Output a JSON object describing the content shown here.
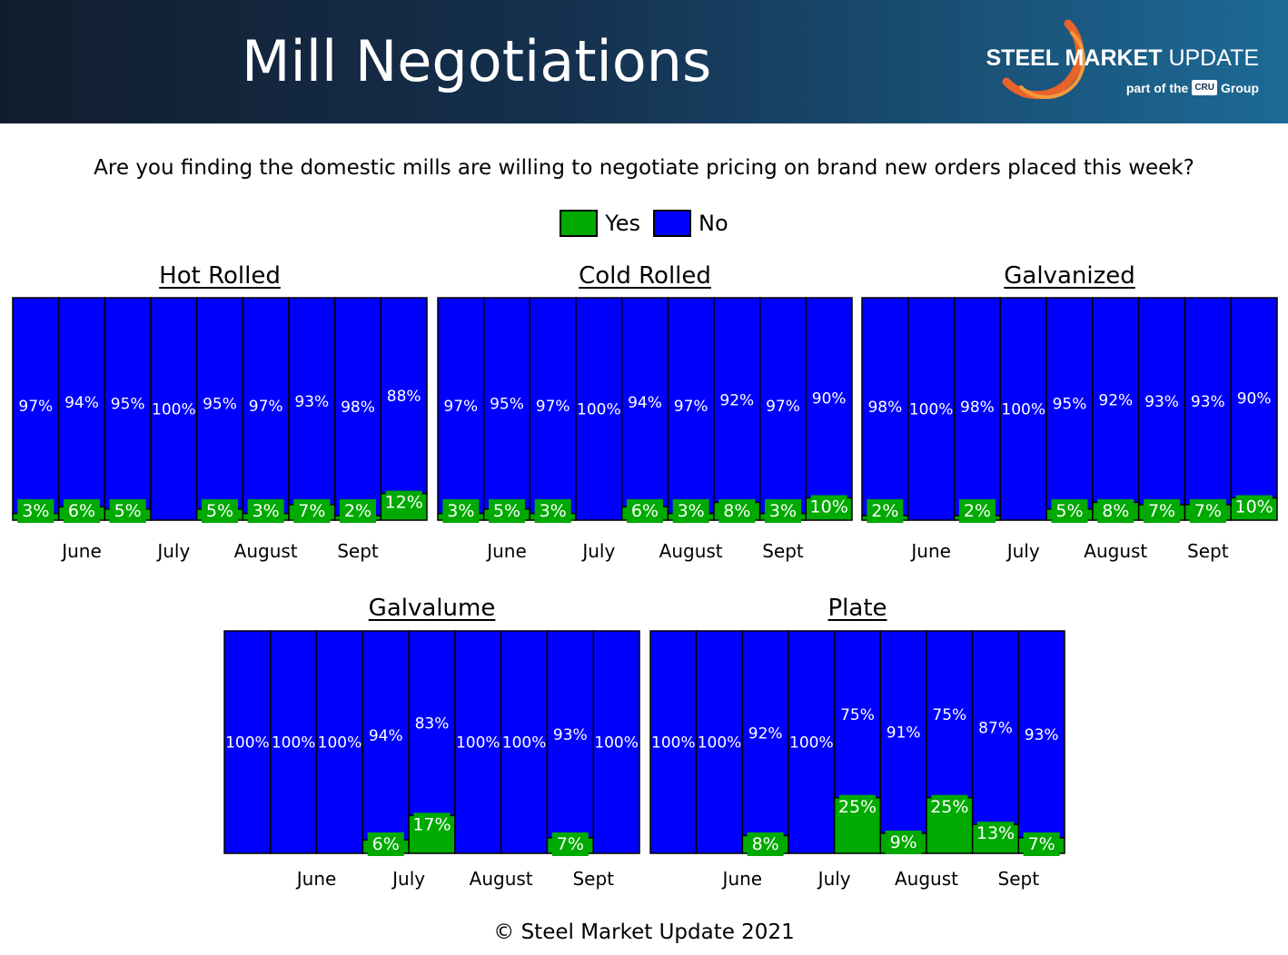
{
  "header": {
    "title": "Mill Negotiations",
    "logo_name_bold": "STEEL MARKET",
    "logo_name_rest": " UPDATE",
    "logo_part_of": "part of the",
    "logo_badge": "CRU",
    "logo_group": "Group"
  },
  "question": "Are you finding the domestic mills are willing to negotiate pricing on brand new orders placed this week?",
  "legend": {
    "yes_label": "Yes",
    "no_label": "No"
  },
  "colors": {
    "yes": "#00aa00",
    "no": "#0000ff",
    "outline": "#000000",
    "label": "#ffffff"
  },
  "footer": "© Steel Market Update 2021",
  "chart_data": [
    {
      "type": "bar",
      "stacked": true,
      "title": "Hot Rolled",
      "series": [
        {
          "name": "Yes",
          "values": [
            3,
            6,
            5,
            0,
            5,
            3,
            7,
            2,
            12
          ]
        },
        {
          "name": "No",
          "values": [
            97,
            94,
            95,
            100,
            95,
            97,
            93,
            98,
            88
          ]
        }
      ],
      "month_labels": [
        {
          "label": "June",
          "at": 1
        },
        {
          "label": "July",
          "at": 3
        },
        {
          "label": "August",
          "at": 5
        },
        {
          "label": "Sept",
          "at": 7
        }
      ],
      "ylim": [
        0,
        100
      ]
    },
    {
      "type": "bar",
      "stacked": true,
      "title": "Cold Rolled",
      "series": [
        {
          "name": "Yes",
          "values": [
            3,
            5,
            3,
            0,
            6,
            3,
            8,
            3,
            10
          ]
        },
        {
          "name": "No",
          "values": [
            97,
            95,
            97,
            100,
            94,
            97,
            92,
            97,
            90
          ]
        }
      ],
      "month_labels": [
        {
          "label": "June",
          "at": 1
        },
        {
          "label": "July",
          "at": 3
        },
        {
          "label": "August",
          "at": 5
        },
        {
          "label": "Sept",
          "at": 7
        }
      ],
      "ylim": [
        0,
        100
      ]
    },
    {
      "type": "bar",
      "stacked": true,
      "title": "Galvanized",
      "series": [
        {
          "name": "Yes",
          "values": [
            2,
            0,
            2,
            0,
            5,
            8,
            7,
            7,
            10
          ]
        },
        {
          "name": "No",
          "values": [
            98,
            100,
            98,
            100,
            95,
            92,
            93,
            93,
            90
          ]
        }
      ],
      "month_labels": [
        {
          "label": "June",
          "at": 1
        },
        {
          "label": "July",
          "at": 3
        },
        {
          "label": "August",
          "at": 5
        },
        {
          "label": "Sept",
          "at": 7
        }
      ],
      "ylim": [
        0,
        100
      ]
    },
    {
      "type": "bar",
      "stacked": true,
      "title": "Galvalume",
      "series": [
        {
          "name": "Yes",
          "values": [
            0,
            0,
            0,
            6,
            17,
            0,
            0,
            7,
            0
          ]
        },
        {
          "name": "No",
          "values": [
            100,
            100,
            100,
            94,
            83,
            100,
            100,
            93,
            100
          ]
        }
      ],
      "month_labels": [
        {
          "label": "June",
          "at": 1.5
        },
        {
          "label": "July",
          "at": 3.5
        },
        {
          "label": "August",
          "at": 5.5
        },
        {
          "label": "Sept",
          "at": 7.5
        }
      ],
      "ylim": [
        0,
        100
      ]
    },
    {
      "type": "bar",
      "stacked": true,
      "title": "Plate",
      "series": [
        {
          "name": "Yes",
          "values": [
            0,
            0,
            8,
            0,
            25,
            9,
            25,
            13,
            7
          ]
        },
        {
          "name": "No",
          "values": [
            100,
            100,
            92,
            100,
            75,
            91,
            75,
            87,
            93
          ]
        }
      ],
      "month_labels": [
        {
          "label": "June",
          "at": 1.5
        },
        {
          "label": "July",
          "at": 3.5
        },
        {
          "label": "August",
          "at": 5.5
        },
        {
          "label": "Sept",
          "at": 7.5
        }
      ],
      "ylim": [
        0,
        100
      ]
    }
  ]
}
